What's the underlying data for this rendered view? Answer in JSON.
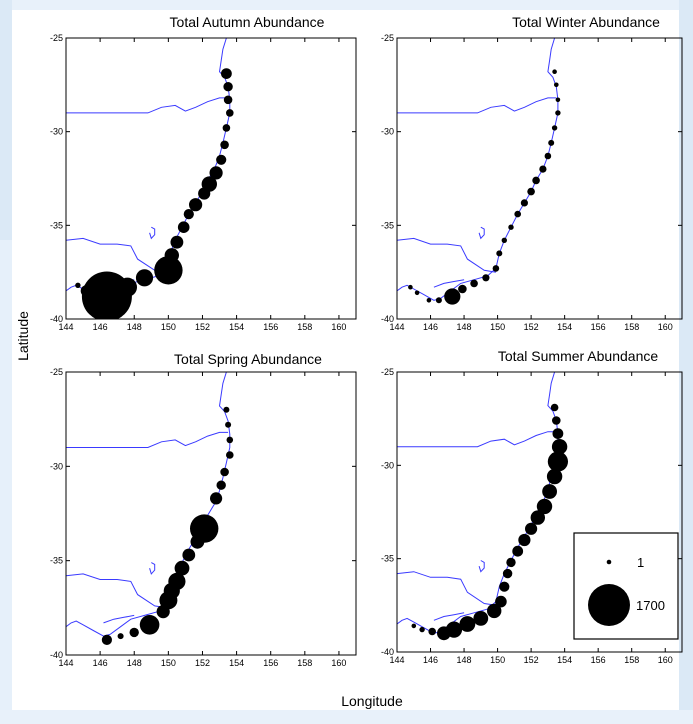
{
  "figure": {
    "xlabel": "Longitude",
    "ylabel": "Latitude"
  },
  "map_extent": {
    "lon": [
      144,
      161
    ],
    "lat": [
      -40,
      -25
    ]
  },
  "x_ticks": [
    144,
    146,
    148,
    150,
    152,
    154,
    156,
    158,
    160
  ],
  "y_ticks": [
    -25,
    -30,
    -35,
    -40
  ],
  "colors": {
    "coastline": "#3a3aff",
    "bubble": "#000000",
    "frame": "#000000"
  },
  "panels": [
    {
      "title": "Total Autumn Abundance",
      "points": [
        [
          153.4,
          -26.9,
          80
        ],
        [
          153.5,
          -27.6,
          60
        ],
        [
          153.5,
          -28.3,
          50
        ],
        [
          153.6,
          -29.0,
          40
        ],
        [
          153.4,
          -29.8,
          40
        ],
        [
          153.3,
          -30.7,
          50
        ],
        [
          153.1,
          -31.5,
          70
        ],
        [
          152.8,
          -32.2,
          120
        ],
        [
          152.4,
          -32.8,
          160
        ],
        [
          152.1,
          -33.3,
          100
        ],
        [
          151.6,
          -33.9,
          120
        ],
        [
          151.2,
          -34.4,
          70
        ],
        [
          150.9,
          -35.1,
          90
        ],
        [
          150.5,
          -35.9,
          110
        ],
        [
          150.2,
          -36.6,
          140
        ],
        [
          150.0,
          -37.4,
          550
        ],
        [
          148.6,
          -37.8,
          200
        ],
        [
          147.6,
          -38.3,
          250
        ],
        [
          146.4,
          -38.8,
          1700
        ],
        [
          145.2,
          -38.5,
          90
        ],
        [
          144.7,
          -38.2,
          20
        ]
      ]
    },
    {
      "title": "Total Winter Abundance",
      "points": [
        [
          153.4,
          -26.8,
          15
        ],
        [
          153.5,
          -27.5,
          15
        ],
        [
          153.6,
          -28.3,
          15
        ],
        [
          153.6,
          -29.0,
          20
        ],
        [
          153.4,
          -29.8,
          20
        ],
        [
          153.2,
          -30.6,
          25
        ],
        [
          153.0,
          -31.3,
          30
        ],
        [
          152.7,
          -32.0,
          35
        ],
        [
          152.3,
          -32.6,
          40
        ],
        [
          152.0,
          -33.2,
          40
        ],
        [
          151.6,
          -33.8,
          35
        ],
        [
          151.2,
          -34.4,
          30
        ],
        [
          150.8,
          -35.1,
          20
        ],
        [
          150.4,
          -35.8,
          20
        ],
        [
          150.1,
          -36.5,
          25
        ],
        [
          149.9,
          -37.3,
          30
        ],
        [
          149.3,
          -37.8,
          35
        ],
        [
          148.6,
          -38.1,
          40
        ],
        [
          147.9,
          -38.4,
          50
        ],
        [
          147.3,
          -38.8,
          180
        ],
        [
          146.5,
          -39.0,
          25
        ],
        [
          145.9,
          -39.0,
          15
        ],
        [
          145.2,
          -38.6,
          15
        ],
        [
          144.8,
          -38.3,
          10
        ]
      ]
    },
    {
      "title": "Total Spring Abundance",
      "points": [
        [
          153.4,
          -27.0,
          25
        ],
        [
          153.5,
          -27.8,
          25
        ],
        [
          153.6,
          -28.6,
          30
        ],
        [
          153.6,
          -29.4,
          40
        ],
        [
          153.3,
          -30.3,
          50
        ],
        [
          153.1,
          -31.0,
          60
        ],
        [
          152.8,
          -31.7,
          100
        ],
        [
          152.1,
          -33.3,
          550
        ],
        [
          151.7,
          -34.0,
          130
        ],
        [
          151.2,
          -34.7,
          110
        ],
        [
          150.8,
          -35.4,
          150
        ],
        [
          150.5,
          -36.1,
          200
        ],
        [
          150.2,
          -36.6,
          180
        ],
        [
          150.0,
          -37.1,
          220
        ],
        [
          149.7,
          -37.7,
          120
        ],
        [
          148.9,
          -38.4,
          260
        ],
        [
          148.0,
          -38.8,
          60
        ],
        [
          147.2,
          -39.0,
          25
        ],
        [
          146.4,
          -39.2,
          70
        ]
      ]
    },
    {
      "title": "Total Summer Abundance",
      "points": [
        [
          153.4,
          -26.9,
          40
        ],
        [
          153.5,
          -27.6,
          50
        ],
        [
          153.6,
          -28.3,
          80
        ],
        [
          153.7,
          -29.0,
          160
        ],
        [
          153.6,
          -29.8,
          280
        ],
        [
          153.4,
          -30.6,
          160
        ],
        [
          153.1,
          -31.4,
          150
        ],
        [
          152.8,
          -32.2,
          160
        ],
        [
          152.4,
          -32.8,
          140
        ],
        [
          152.0,
          -33.4,
          100
        ],
        [
          151.6,
          -34.0,
          100
        ],
        [
          151.2,
          -34.6,
          80
        ],
        [
          150.8,
          -35.2,
          60
        ],
        [
          150.6,
          -35.8,
          60
        ],
        [
          150.4,
          -36.5,
          70
        ],
        [
          150.2,
          -37.3,
          90
        ],
        [
          149.8,
          -37.8,
          140
        ],
        [
          149.0,
          -38.2,
          150
        ],
        [
          148.2,
          -38.5,
          170
        ],
        [
          147.4,
          -38.8,
          180
        ],
        [
          146.8,
          -39.0,
          130
        ],
        [
          146.1,
          -38.9,
          40
        ],
        [
          145.5,
          -38.8,
          20
        ],
        [
          145.0,
          -38.6,
          15
        ]
      ]
    }
  ],
  "legend": {
    "entries": [
      {
        "label": "1",
        "value": 1
      },
      {
        "label": "1700",
        "value": 1700
      }
    ]
  },
  "coastline": [
    [
      153.4,
      -25.0
    ],
    [
      153.2,
      -25.6
    ],
    [
      153.1,
      -26.2
    ],
    [
      153.0,
      -26.8
    ],
    [
      153.3,
      -27.1
    ],
    [
      153.5,
      -27.6
    ],
    [
      153.6,
      -28.3
    ],
    [
      153.6,
      -29.0
    ],
    [
      153.4,
      -29.8
    ],
    [
      153.2,
      -30.6
    ],
    [
      153.0,
      -31.3
    ],
    [
      152.7,
      -32.0
    ],
    [
      152.3,
      -32.6
    ],
    [
      152.0,
      -33.2
    ],
    [
      151.6,
      -33.8
    ],
    [
      151.2,
      -34.4
    ],
    [
      150.8,
      -35.1
    ],
    [
      150.4,
      -35.8
    ],
    [
      150.1,
      -36.5
    ],
    [
      149.9,
      -37.3
    ],
    [
      149.4,
      -37.7
    ],
    [
      148.6,
      -37.9
    ],
    [
      147.8,
      -38.1
    ],
    [
      147.2,
      -38.5
    ],
    [
      146.6,
      -38.9
    ],
    [
      146.2,
      -39.0
    ],
    [
      145.6,
      -38.7
    ],
    [
      145.0,
      -38.4
    ],
    [
      144.6,
      -38.2
    ],
    [
      144.3,
      -38.3
    ],
    [
      144.0,
      -38.5
    ]
  ],
  "border_qld_nsw": [
    [
      144.0,
      -29.0
    ],
    [
      148.8,
      -29.0
    ],
    [
      149.6,
      -28.7
    ],
    [
      150.4,
      -28.6
    ],
    [
      151.0,
      -28.9
    ],
    [
      151.6,
      -28.7
    ],
    [
      152.3,
      -28.4
    ],
    [
      153.0,
      -28.2
    ],
    [
      153.5,
      -28.2
    ]
  ],
  "border_vic_nsw": [
    [
      144.0,
      -35.8
    ],
    [
      145.0,
      -35.7
    ],
    [
      146.0,
      -36.0
    ],
    [
      147.0,
      -36.0
    ],
    [
      147.8,
      -36.1
    ],
    [
      148.2,
      -36.8
    ],
    [
      149.2,
      -37.4
    ],
    [
      149.9,
      -37.5
    ]
  ],
  "act_border": [
    [
      149.0,
      -35.1
    ],
    [
      149.2,
      -35.2
    ],
    [
      149.2,
      -35.5
    ],
    [
      149.0,
      -35.7
    ],
    [
      148.9,
      -35.4
    ]
  ],
  "river_south": [
    [
      146.2,
      -38.3
    ],
    [
      146.8,
      -38.1
    ],
    [
      147.4,
      -38.0
    ],
    [
      148.0,
      -37.9
    ]
  ]
}
